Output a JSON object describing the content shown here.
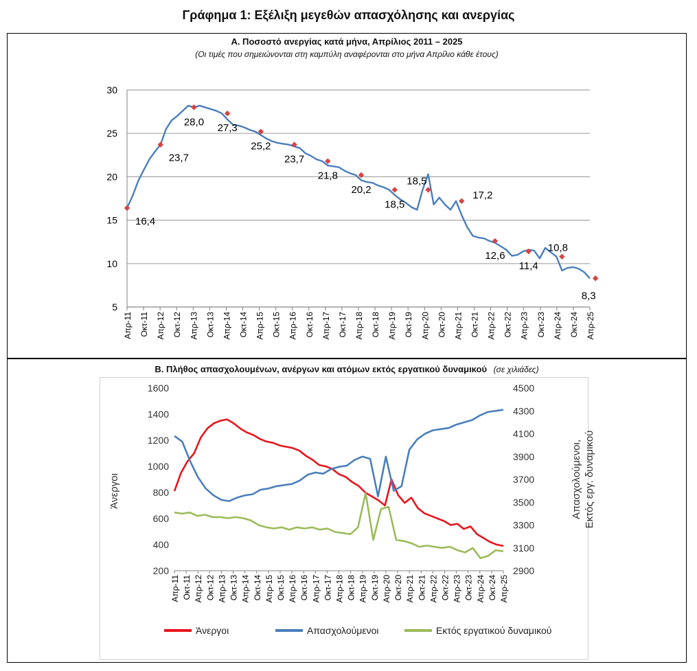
{
  "main_title": "Γράφημα 1: Εξέλιξη μεγεθών απασχόλησης και ανεργίας",
  "panel_a": {
    "title": "Α. Ποσοστό ανεργίας κατά μήνα, Απρίλιος 2011 – 2025",
    "subtitle": "(Οι τιμές που σημειώνονται στη καμπύλη αναφέρονται στο μήνα Απρίλιο κάθε έτους)"
  },
  "panel_b": {
    "title": "Β. Πλήθος απασχολουμένων, ανέργων και ατόμων εκτός εργατικού δυναμικού",
    "title_note": "(σε χιλιάδες)"
  },
  "colors": {
    "rate": "#4a7ebb",
    "marker": "#d64545",
    "unemployed": "#e8141b",
    "employed": "#4a7ebb",
    "inactive": "#9bbb59",
    "grid": "#a6a6a6"
  },
  "chart_data": [
    {
      "type": "line",
      "y_ticks": [
        5,
        10,
        15,
        20,
        25,
        30
      ],
      "ylim": [
        5,
        30
      ],
      "x_tick_labels": [
        "Απρ-11",
        "Οκτ-11",
        "Απρ-12",
        "Οκτ-12",
        "Απρ-13",
        "Οκτ-13",
        "Απρ-14",
        "Οκτ-14",
        "Απρ-15",
        "Οκτ-15",
        "Απρ-16",
        "Οκτ-16",
        "Απρ-17",
        "Οκτ-17",
        "Απρ-18",
        "Οκτ-18",
        "Απρ-19",
        "Οκτ-19",
        "Απρ-20",
        "Οκτ-20",
        "Απρ-21",
        "Οκτ-21",
        "Απρ-22",
        "Οκτ-22",
        "Απρ-23",
        "Οκτ-23",
        "Απρ-24",
        "Οκτ-24",
        "Απρ-25"
      ],
      "grid": true,
      "series": [
        {
          "values": [
            16.4,
            17.8,
            19.5,
            20.8,
            22.0,
            22.9,
            23.7,
            25.5,
            26.5,
            27.0,
            27.6,
            28.2,
            28.0,
            28.2,
            28.0,
            27.8,
            27.6,
            27.3,
            26.6,
            26.0,
            25.9,
            25.7,
            25.4,
            25.2,
            24.8,
            24.4,
            24.1,
            23.9,
            23.8,
            23.7,
            23.5,
            23.3,
            22.7,
            22.4,
            22.0,
            21.8,
            21.3,
            21.2,
            21.1,
            20.7,
            20.4,
            20.2,
            19.6,
            19.4,
            19.3,
            19.0,
            18.8,
            18.5,
            17.9,
            17.4,
            17.0,
            16.5,
            16.2,
            18.5,
            20.3,
            16.8,
            17.6,
            16.8,
            16.2,
            17.2,
            15.6,
            14.2,
            13.2,
            13.0,
            12.9,
            12.6,
            12.4,
            12.0,
            11.6,
            10.9,
            11.0,
            11.4,
            11.6,
            11.5,
            10.6,
            11.8,
            11.3,
            10.8,
            9.2,
            9.5,
            9.6,
            9.4,
            9.0,
            8.3
          ]
        }
      ],
      "april_labels": [
        {
          "x": 0,
          "y": 16.4,
          "label": "16,4"
        },
        {
          "x": 6,
          "y": 23.7,
          "label": "23,7"
        },
        {
          "x": 12,
          "y": 28.0,
          "label": "28,0"
        },
        {
          "x": 18,
          "y": 27.3,
          "label": "27,3"
        },
        {
          "x": 24,
          "y": 25.2,
          "label": "25,2"
        },
        {
          "x": 30,
          "y": 23.7,
          "label": "23,7"
        },
        {
          "x": 36,
          "y": 21.8,
          "label": "21,8"
        },
        {
          "x": 42,
          "y": 20.2,
          "label": "20,2"
        },
        {
          "x": 48,
          "y": 18.5,
          "label": "18,5"
        },
        {
          "x": 54,
          "y": 18.5,
          "label": "18,5"
        },
        {
          "x": 60,
          "y": 17.2,
          "label": "17,2"
        },
        {
          "x": 66,
          "y": 12.6,
          "label": "12,6"
        },
        {
          "x": 72,
          "y": 11.4,
          "label": "11,4"
        },
        {
          "x": 78,
          "y": 10.8,
          "label": "10,8"
        },
        {
          "x": 84,
          "y": 8.3,
          "label": "8,3"
        }
      ]
    },
    {
      "type": "line",
      "ylabel": "Άνεργοι",
      "y2label": "Απασχολούμενοι, Εκτός εργ. δυναμικού",
      "y_ticks": [
        200,
        400,
        600,
        800,
        1000,
        1200,
        1400,
        1600
      ],
      "ylim": [
        200,
        1600
      ],
      "y2_ticks": [
        2900,
        3100,
        3300,
        3500,
        3700,
        3900,
        4100,
        4300,
        4500
      ],
      "y2lim": [
        2900,
        4500
      ],
      "x_tick_labels": [
        "Απρ-11",
        "Οκτ-11",
        "Απρ-12",
        "Οκτ-12",
        "Απρ-13",
        "Οκτ-13",
        "Απρ-14",
        "Οκτ-14",
        "Απρ-15",
        "Οκτ-15",
        "Απρ-16",
        "Οκτ-16",
        "Απρ-17",
        "Οκτ-17",
        "Απρ-18",
        "Οκτ-18",
        "Απρ-19",
        "Οκτ-19",
        "Απρ-20",
        "Οκτ-20",
        "Απρ-21",
        "Οκτ-21",
        "Απρ-22",
        "Οκτ-22",
        "Απρ-23",
        "Οκτ-23",
        "Απρ-24",
        "Οκτ-24",
        "Απρ-25"
      ],
      "legend_position": "bottom",
      "series": [
        {
          "name": "Άνεργοι",
          "axis": "left",
          "color": "#e8141b",
          "values": [
            810,
            950,
            1040,
            1100,
            1220,
            1290,
            1330,
            1350,
            1360,
            1330,
            1290,
            1260,
            1240,
            1210,
            1190,
            1180,
            1160,
            1150,
            1140,
            1120,
            1080,
            1050,
            1010,
            1000,
            980,
            940,
            920,
            880,
            850,
            800,
            770,
            740,
            700,
            900,
            780,
            720,
            760,
            680,
            640,
            620,
            600,
            580,
            550,
            560,
            520,
            540,
            480,
            450,
            420,
            400,
            390
          ]
        },
        {
          "name": "Απασχολούμενοι",
          "axis": "right",
          "color": "#4a7ebb",
          "values": [
            4080,
            4030,
            3860,
            3720,
            3620,
            3560,
            3520,
            3510,
            3540,
            3560,
            3570,
            3610,
            3620,
            3640,
            3650,
            3660,
            3690,
            3740,
            3760,
            3750,
            3790,
            3810,
            3820,
            3870,
            3900,
            3880,
            3550,
            3900,
            3600,
            3640,
            3960,
            4050,
            4100,
            4130,
            4140,
            4150,
            4180,
            4200,
            4220,
            4260,
            4290,
            4300,
            4310
          ]
        },
        {
          "name": "Εκτός εργατικού δυναμικού",
          "axis": "right",
          "color": "#9bbb59",
          "values": [
            3410,
            3400,
            3410,
            3380,
            3390,
            3370,
            3370,
            3360,
            3370,
            3360,
            3340,
            3300,
            3280,
            3270,
            3280,
            3260,
            3280,
            3270,
            3280,
            3260,
            3270,
            3240,
            3230,
            3220,
            3280,
            3580,
            3170,
            3440,
            3460,
            3170,
            3160,
            3140,
            3110,
            3120,
            3110,
            3100,
            3110,
            3080,
            3060,
            3100,
            3010,
            3030,
            3080,
            3070
          ]
        }
      ]
    }
  ]
}
